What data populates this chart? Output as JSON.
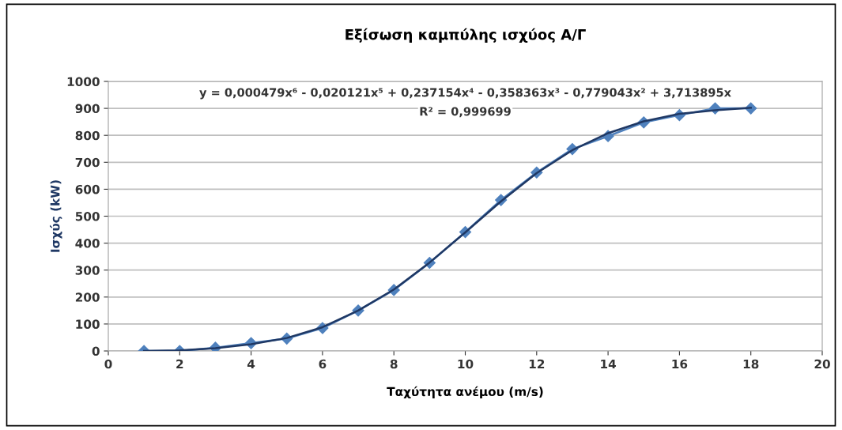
{
  "chart_data": {
    "type": "line",
    "title": "Εξίσωση καμπύλης ισχύος Α/Γ",
    "xlabel": "Ταχύτητα ανέμου (m/s)",
    "ylabel": "Ισχύς (kW)",
    "xlim": [
      0,
      20
    ],
    "xticks": [
      0,
      2,
      4,
      6,
      8,
      10,
      12,
      14,
      16,
      18,
      20
    ],
    "ylim": [
      0,
      1000
    ],
    "yticks": [
      0,
      100,
      200,
      300,
      400,
      500,
      600,
      700,
      800,
      900,
      1000
    ],
    "grid": "y",
    "series": [
      {
        "color": "#4f81bd",
        "marker": "diamond",
        "x": [
          1,
          2,
          3,
          4,
          5,
          6,
          7,
          8,
          9,
          10,
          11,
          12,
          13,
          14,
          15,
          16,
          17,
          18
        ],
        "values": [
          0,
          0,
          12,
          29,
          46,
          85,
          150,
          226,
          327,
          441,
          560,
          662,
          749,
          797,
          848,
          875,
          900,
          900
        ]
      },
      {
        "color": "#1f3864",
        "marker": "none",
        "x": [
          1,
          2,
          3,
          4,
          5,
          6,
          7,
          8,
          9,
          10,
          11,
          12,
          13,
          14,
          15,
          16,
          17,
          18
        ],
        "values": [
          0,
          2,
          10,
          25,
          48,
          88,
          150,
          228,
          328,
          440,
          555,
          660,
          745,
          808,
          852,
          880,
          893,
          902
        ]
      }
    ],
    "annotations": [
      "y = 0,000479x⁶ - 0,020121x⁵ + 0,237154x⁴ - 0,358363x³ - 0,779043x² + 3,713895x",
      "R² = 0,999699"
    ]
  }
}
